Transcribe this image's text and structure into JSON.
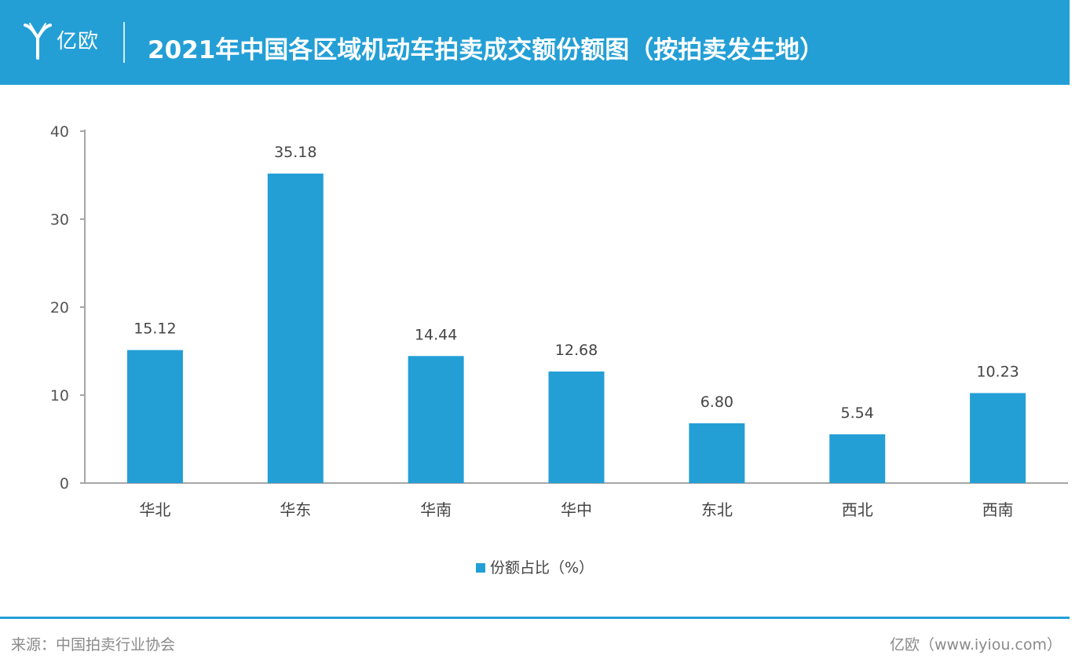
{
  "header": {
    "brand": "亿欧",
    "title": "2021年中国各区域机动车拍卖成交额份额图（按拍卖发生地）"
  },
  "colors": {
    "accent": "#239fd6",
    "bar": "#239fd6"
  },
  "chart_data": {
    "type": "bar",
    "title": "2021年中国各区域机动车拍卖成交额份额图（按拍卖发生地）",
    "categories": [
      "华北",
      "华东",
      "华南",
      "华中",
      "东北",
      "西北",
      "西南"
    ],
    "series": [
      {
        "name": "份额占比（%）",
        "values": [
          15.12,
          35.18,
          14.44,
          12.68,
          6.8,
          5.54,
          10.23
        ]
      }
    ],
    "data_labels": [
      "15.12",
      "35.18",
      "14.44",
      "12.68",
      "6.80",
      "5.54",
      "10.23"
    ],
    "ylim": [
      0,
      40
    ],
    "yticks": [
      0,
      10,
      20,
      30,
      40
    ],
    "xlabel": "",
    "ylabel": "",
    "grid": false,
    "legend": "bottom-center"
  },
  "footer": {
    "source": "来源：中国拍卖行业协会",
    "credit": "亿欧（www.iyiou.com）"
  }
}
